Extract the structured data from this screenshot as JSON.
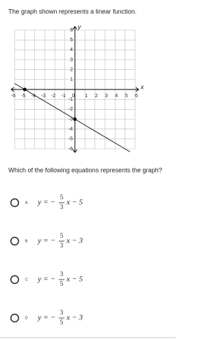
{
  "question": "The graph shown represents a linear function.",
  "graph": {
    "x_label": "x",
    "y_label": "y",
    "xlim": [
      -6,
      6
    ],
    "ylim": [
      -6,
      6
    ],
    "xticks": [
      -6,
      -5,
      -4,
      -3,
      -2,
      -1,
      0,
      1,
      2,
      3,
      4,
      5,
      6
    ],
    "yticks": [
      -6,
      -5,
      -4,
      -3,
      -2,
      -1,
      1,
      2,
      3,
      4,
      5,
      6
    ],
    "points": {
      "x": [
        -5,
        0
      ],
      "y": [
        0,
        -3
      ]
    },
    "line": {
      "x": [
        -6,
        5.5
      ],
      "y": [
        0.6,
        -6.3
      ]
    }
  },
  "prompt": "Which of the following equations represents the graph?",
  "options": [
    {
      "letter": "A",
      "lhs": "y = −",
      "num": "5",
      "den": "3",
      "rhs": "x − 5"
    },
    {
      "letter": "B",
      "lhs": "y = −",
      "num": "5",
      "den": "3",
      "rhs": "x − 3"
    },
    {
      "letter": "C",
      "lhs": "y = −",
      "num": "3",
      "den": "5",
      "rhs": "x − 5"
    },
    {
      "letter": "D",
      "lhs": "y = −",
      "num": "3",
      "den": "5",
      "rhs": "x − 3"
    }
  ]
}
